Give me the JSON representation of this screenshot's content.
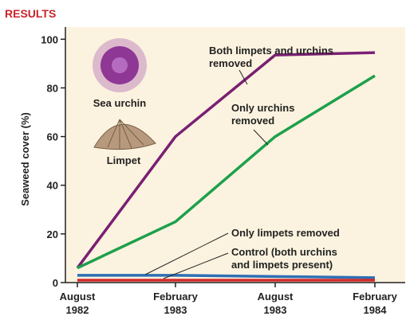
{
  "chart_data": {
    "type": "line",
    "title": "RESULTS",
    "y_label": "Seaweed cover (%)",
    "categories": [
      "August\n1982",
      "February\n1983",
      "August\n1983",
      "February\n1984"
    ],
    "series": [
      {
        "name": "Both limpets and urchins\nremoved",
        "color": "#7a1f73",
        "values": [
          6,
          60,
          93.5,
          94.5
        ]
      },
      {
        "name": "Only urchins\nremoved",
        "color": "#1ea04c",
        "values": [
          6,
          25,
          60,
          85
        ]
      },
      {
        "name": "Only limpets removed",
        "color": "#2f6fb4",
        "values": [
          3,
          3,
          2.5,
          2
        ]
      },
      {
        "name": "Control (both urchins\nand limpets present)",
        "color": "#d42a2a",
        "values": [
          1,
          1,
          1,
          1
        ]
      }
    ],
    "annotations": [
      "Sea urchin",
      "Limpet"
    ],
    "ylim": [
      0,
      105
    ],
    "yticks": [
      0,
      20,
      40,
      60,
      80,
      100
    ]
  }
}
